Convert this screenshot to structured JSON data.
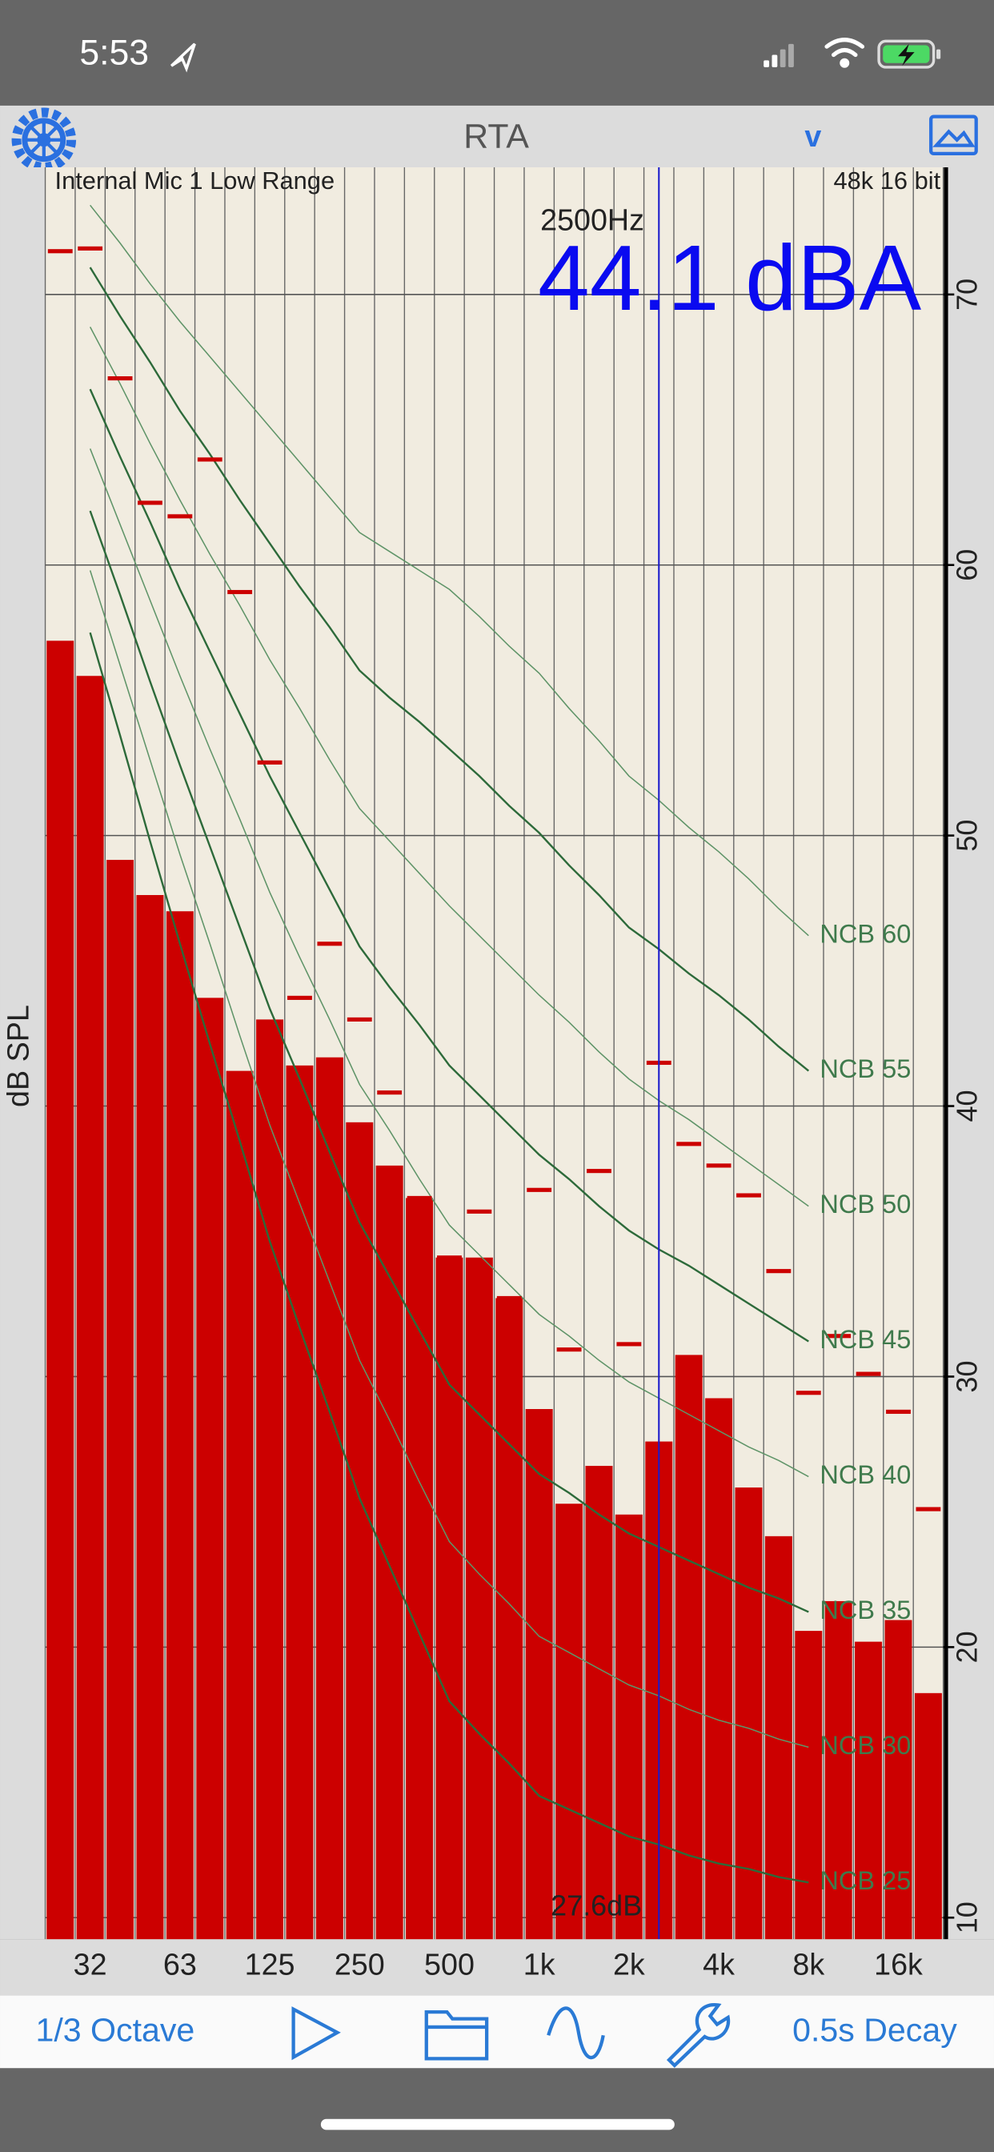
{
  "status_bar": {
    "time": "5:53"
  },
  "nav_bar": {
    "title": "RTA",
    "menu": "v"
  },
  "toolbar": {
    "resolution": "1/3 Octave",
    "decay": "0.5s Decay"
  },
  "chart_data": {
    "type": "bar",
    "input": "Internal Mic 1 Low Range",
    "format": "48k 16 bit",
    "cursor_frequency": "2500Hz",
    "readout": "44.1 dBA",
    "cursor_level": "27.6dB",
    "y_label": "dB SPL",
    "categories": [
      null,
      "32",
      null,
      null,
      "63",
      null,
      null,
      "125",
      null,
      null,
      "250",
      null,
      null,
      "500",
      null,
      null,
      "1k",
      null,
      null,
      "2k",
      null,
      null,
      "4k",
      null,
      null,
      "8k",
      null,
      null,
      "16k",
      null
    ],
    "values": [
      57.2,
      55.9,
      49.1,
      47.8,
      47.2,
      44.0,
      41.3,
      43.2,
      41.5,
      41.8,
      39.4,
      37.8,
      36.6,
      34.4,
      34.4,
      32.9,
      28.8,
      25.3,
      26.7,
      24.9,
      27.6,
      30.8,
      29.2,
      25.9,
      24.1,
      20.6,
      21.7,
      20.2,
      21.0,
      18.3
    ],
    "peaks": [
      71.6,
      71.7,
      66.9,
      62.3,
      61.8,
      63.9,
      59.0,
      52.7,
      44.0,
      46.0,
      43.2,
      40.5,
      36.6,
      34.4,
      36.1,
      32.9,
      36.9,
      31.0,
      37.6,
      31.2,
      41.6,
      38.6,
      37.8,
      36.7,
      33.9,
      29.4,
      31.5,
      30.1,
      28.7,
      25.1
    ],
    "color": "#cc0000",
    "ylim": [
      9.2,
      74.7
    ],
    "yticks": [
      10,
      20,
      30,
      40,
      50,
      60,
      70
    ],
    "grid": true,
    "ncb_curves": [
      {
        "name": "NCB 60",
        "color": "#5f9468",
        "values": [
          null,
          73.3,
          71.9,
          70.4,
          69.0,
          67.7,
          66.4,
          65.1,
          63.8,
          62.5,
          61.2,
          60.5,
          59.8,
          59.1,
          58.1,
          57.0,
          56.0,
          54.7,
          53.5,
          52.2,
          51.3,
          50.3,
          49.4,
          48.4,
          47.3,
          46.3,
          null,
          null,
          null,
          null
        ]
      },
      {
        "name": "NCB 55",
        "color": "#2d6a3a",
        "values": [
          null,
          71.0,
          69.2,
          67.5,
          65.7,
          64.1,
          62.4,
          60.8,
          59.2,
          57.7,
          56.1,
          55.1,
          54.2,
          53.2,
          52.2,
          51.1,
          50.1,
          48.9,
          47.8,
          46.6,
          45.8,
          44.9,
          44.1,
          43.2,
          42.2,
          41.3,
          null,
          null,
          null,
          null
        ]
      },
      {
        "name": "NCB 50",
        "color": "#5f9468",
        "values": [
          null,
          68.8,
          66.7,
          64.5,
          62.4,
          60.4,
          58.5,
          56.5,
          54.7,
          52.8,
          51.0,
          49.8,
          48.6,
          47.4,
          46.3,
          45.2,
          44.1,
          43.1,
          42.0,
          41.0,
          40.2,
          39.5,
          38.7,
          37.9,
          37.1,
          36.3,
          null,
          null,
          null,
          null
        ]
      },
      {
        "name": "NCB 45",
        "color": "#2d6a3a",
        "values": [
          null,
          66.5,
          64.0,
          61.6,
          59.1,
          56.8,
          54.5,
          52.2,
          50.1,
          48.0,
          45.9,
          44.4,
          43.0,
          41.5,
          40.4,
          39.3,
          38.2,
          37.3,
          36.3,
          35.4,
          34.7,
          34.1,
          33.4,
          32.7,
          32.0,
          31.3,
          null,
          null,
          null,
          null
        ]
      },
      {
        "name": "NCB 40",
        "color": "#5f9468",
        "values": [
          null,
          64.3,
          61.5,
          58.7,
          55.9,
          53.2,
          50.6,
          47.9,
          45.5,
          43.2,
          40.8,
          39.1,
          37.3,
          35.6,
          34.5,
          33.4,
          32.3,
          31.5,
          30.6,
          29.8,
          29.2,
          28.6,
          28.0,
          27.4,
          26.9,
          26.3,
          null,
          null,
          null,
          null
        ]
      },
      {
        "name": "NCB 35",
        "color": "#2d6a3a",
        "values": [
          null,
          62.0,
          58.9,
          55.7,
          52.6,
          49.6,
          46.6,
          43.6,
          41.0,
          38.3,
          35.7,
          33.7,
          31.7,
          29.7,
          28.6,
          27.5,
          26.4,
          25.7,
          24.9,
          24.2,
          23.7,
          23.2,
          22.7,
          22.2,
          21.8,
          21.3,
          null,
          null,
          null,
          null
        ]
      },
      {
        "name": "NCB 30",
        "color": "#5f9468",
        "values": [
          null,
          59.8,
          56.3,
          52.8,
          49.3,
          46.0,
          42.6,
          39.3,
          36.4,
          33.5,
          30.6,
          28.4,
          26.1,
          23.9,
          22.7,
          21.6,
          20.4,
          19.8,
          19.2,
          18.6,
          18.2,
          17.7,
          17.3,
          17.0,
          16.6,
          16.3,
          null,
          null,
          null,
          null
        ]
      },
      {
        "name": "NCB 25",
        "color": "#2d6a3a",
        "values": [
          null,
          57.5,
          53.7,
          49.8,
          46.0,
          42.3,
          38.7,
          35.0,
          31.8,
          28.7,
          25.5,
          23.0,
          20.5,
          18.0,
          16.8,
          15.7,
          14.5,
          14.0,
          13.5,
          13.0,
          12.7,
          12.3,
          12.0,
          11.8,
          11.5,
          11.3,
          null,
          null,
          null,
          null
        ]
      }
    ]
  }
}
